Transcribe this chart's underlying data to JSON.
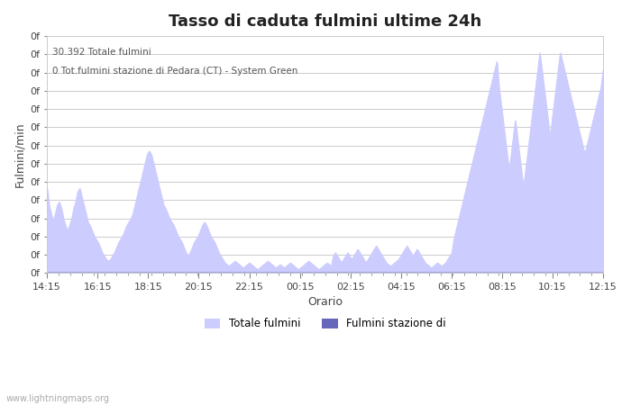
{
  "title": "Tasso di caduta fulmini ultime 24h",
  "xlabel": "Orario",
  "ylabel": "Fulmini/min",
  "annotation_line1": "30.392 Totale fulmini",
  "annotation_line2": "0 Tot.fulmini stazione di Pedara (CT) - System Green",
  "x_labels": [
    "14:15",
    "16:15",
    "18:15",
    "20:15",
    "22:15",
    "00:15",
    "02:15",
    "04:15",
    "06:15",
    "08:15",
    "10:15",
    "12:15"
  ],
  "watermark": "www.lightningmaps.org",
  "legend_label1": "Totale fulmini",
  "legend_label2": "Fulmini stazione di",
  "fill_color_light": "#ccccff",
  "fill_color_dark": "#6666bb",
  "background_color": "#ffffff",
  "plot_bg_color": "#ffffff",
  "grid_color": "#cccccc",
  "title_fontsize": 13,
  "axis_fontsize": 9,
  "tick_fontsize": 8,
  "data_totale": [
    5,
    4,
    3.5,
    3,
    3.5,
    4,
    4.2,
    3.8,
    3.2,
    2.8,
    2.5,
    2.8,
    3.2,
    3.8,
    4.2,
    4.8,
    5,
    4.5,
    4,
    3.5,
    3,
    2.8,
    2.5,
    2.2,
    2,
    1.8,
    1.5,
    1.2,
    1,
    0.8,
    0.7,
    0.8,
    1,
    1.2,
    1.5,
    1.8,
    2,
    2.2,
    2.5,
    2.8,
    3,
    3.2,
    3.5,
    4,
    4.5,
    5,
    5.5,
    6,
    6.5,
    7,
    7.2,
    7,
    6.5,
    6,
    5.5,
    5,
    4.5,
    4,
    3.8,
    3.5,
    3.2,
    3,
    2.8,
    2.5,
    2.2,
    2,
    1.8,
    1.5,
    1.2,
    1,
    1.2,
    1.5,
    1.8,
    2,
    2.2,
    2.5,
    2.8,
    3,
    2.8,
    2.5,
    2.2,
    2,
    1.8,
    1.5,
    1.2,
    1,
    0.8,
    0.6,
    0.5,
    0.4,
    0.5,
    0.6,
    0.7,
    0.6,
    0.5,
    0.4,
    0.3,
    0.4,
    0.5,
    0.6,
    0.5,
    0.4,
    0.3,
    0.2,
    0.3,
    0.4,
    0.5,
    0.6,
    0.7,
    0.6,
    0.5,
    0.4,
    0.3,
    0.4,
    0.5,
    0.4,
    0.3,
    0.4,
    0.5,
    0.6,
    0.5,
    0.4,
    0.3,
    0.2,
    0.3,
    0.4,
    0.5,
    0.6,
    0.7,
    0.6,
    0.5,
    0.4,
    0.3,
    0.2,
    0.3,
    0.4,
    0.5,
    0.6,
    0.5,
    0.4,
    1,
    1.2,
    1,
    0.8,
    0.6,
    0.8,
    1,
    1.2,
    1,
    0.8,
    1,
    1.2,
    1.4,
    1.2,
    1,
    0.8,
    0.6,
    0.8,
    1,
    1.2,
    1.4,
    1.6,
    1.4,
    1.2,
    1,
    0.8,
    0.6,
    0.5,
    0.4,
    0.5,
    0.6,
    0.7,
    0.8,
    1,
    1.2,
    1.4,
    1.6,
    1.4,
    1.2,
    1,
    1.2,
    1.4,
    1.2,
    1,
    0.8,
    0.6,
    0.5,
    0.4,
    0.3,
    0.4,
    0.5,
    0.6,
    0.5,
    0.4,
    0.5,
    0.6,
    0.8,
    1,
    1.2,
    2,
    2.5,
    3,
    3.5,
    4,
    4.5,
    5,
    5.5,
    6,
    6.5,
    7,
    7.5,
    8,
    8.5,
    9,
    9.5,
    10,
    10.5,
    11,
    11.5,
    12,
    12.5,
    11,
    10,
    9,
    8,
    7,
    6,
    7,
    8,
    9,
    8,
    7,
    6,
    5,
    6,
    7,
    8,
    9,
    10,
    11,
    12,
    13,
    12,
    11,
    10,
    9,
    8,
    9,
    10,
    11,
    12,
    13,
    12.5,
    12,
    11.5,
    11,
    10.5,
    10,
    9.5,
    9,
    8.5,
    8,
    7.5,
    7,
    7.5,
    8,
    8.5,
    9,
    9.5,
    10,
    10.5,
    11,
    12
  ]
}
